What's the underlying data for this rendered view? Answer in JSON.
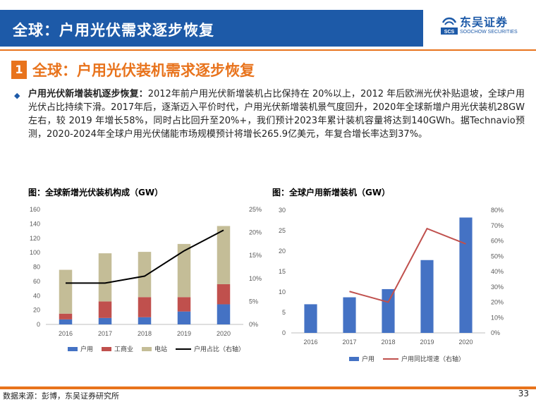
{
  "header": {
    "title": "全球：户用光伏需求逐步恢复",
    "logo_cn": "东吴证券",
    "logo_en": "SOOCHOW SECURITIES",
    "logo_mark": "SCS",
    "brand_color": "#1d5aa8",
    "accent_color": "#e8731c"
  },
  "section": {
    "number": "1",
    "title": "全球：户用光伏装机需求逐步恢复"
  },
  "body": {
    "lead": "户用光伏新增装机逐步恢复：",
    "text": "2012年前户用光伏新增装机占比保持在 20%以上，2012 年后欧洲光伏补贴退坡，全球户用光伏占比持续下滑。2017年后，逐渐迈入平价时代，户用光伏新增装机景气度回升，2020年全球新增户用光伏装机28GW左右，较 2019 年增长58%，同时占比回升至20%+，我们预计2023年累计装机容量将达到140GWh。据Technavio预测，2020-2024年全球户用光伏储能市场规模预计将增长265.9亿美元，年复合增长率达到37%。"
  },
  "charts": {
    "left_title": "图：全球新增光伏装机构成（GW）",
    "right_title": "图：全球户用新增装机（GW）"
  },
  "chart_data": [
    {
      "type": "bar",
      "stacked": true,
      "categories": [
        "2016",
        "2017",
        "2018",
        "2019",
        "2020"
      ],
      "series": [
        {
          "name": "户用",
          "values": [
            7,
            9,
            10,
            18,
            28
          ],
          "color": "#4472c4"
        },
        {
          "name": "工商业",
          "values": [
            8,
            23,
            28,
            20,
            28
          ],
          "color": "#c0504d"
        },
        {
          "name": "电站",
          "values": [
            61,
            67,
            63,
            74,
            81
          ],
          "color": "#c4bd97"
        }
      ],
      "line_series": [
        {
          "name": "户用占比（右轴）",
          "values": [
            0.09,
            0.09,
            0.105,
            0.16,
            0.205
          ],
          "color": "#000000",
          "axis": "right"
        }
      ],
      "ylim": [
        0,
        160
      ],
      "yticks": [
        0,
        20,
        40,
        60,
        80,
        100,
        120,
        140,
        160
      ],
      "y2lim": [
        0,
        0.25
      ],
      "y2ticks": [
        "0%",
        "5%",
        "10%",
        "15%",
        "20%",
        "25%"
      ],
      "legend": "bottom",
      "grid": false
    },
    {
      "type": "bar",
      "categories": [
        "2016",
        "2017",
        "2018",
        "2019",
        "2020"
      ],
      "series": [
        {
          "name": "户用",
          "values": [
            7,
            8.7,
            10.7,
            17.8,
            28.2
          ],
          "color": "#4472c4"
        }
      ],
      "line_series": [
        {
          "name": "户用同比增速（右轴）",
          "values": [
            null,
            0.27,
            0.2,
            0.68,
            0.58
          ],
          "color": "#c0504d",
          "axis": "right"
        }
      ],
      "ylim": [
        0,
        30
      ],
      "yticks": [
        0,
        5,
        10,
        15,
        20,
        25,
        30
      ],
      "y2lim": [
        0,
        0.8
      ],
      "y2ticks": [
        "0%",
        "10%",
        "20%",
        "30%",
        "40%",
        "50%",
        "60%",
        "70%",
        "80%"
      ],
      "legend": "bottom",
      "grid": false
    }
  ],
  "footer": {
    "source": "数据来源：彭博，东吴证券研究所",
    "page": "33"
  }
}
